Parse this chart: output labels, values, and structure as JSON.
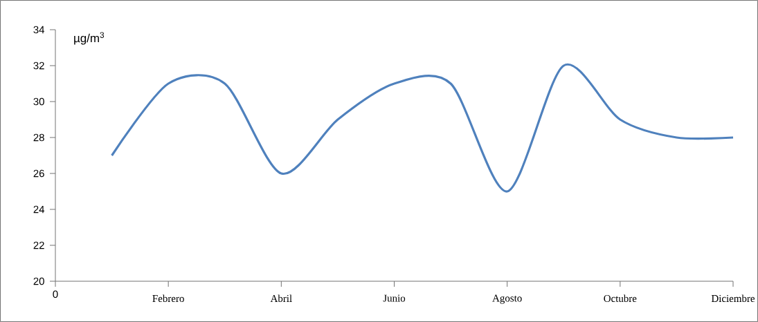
{
  "chart_data": {
    "type": "line",
    "ylabel": "µg/m$^{3}$",
    "categories": [
      null,
      "Febrero",
      null,
      "Abril",
      null,
      "Junio",
      null,
      "Agosto",
      null,
      "Octubre",
      null,
      "Diciembre"
    ],
    "series": [
      {
        "color": "#4f81bd",
        "values": [
          27,
          31,
          31,
          26,
          29,
          31,
          31,
          25,
          32,
          29,
          28,
          28
        ]
      }
    ],
    "ylim": [
      20,
      34
    ],
    "yticks": [
      20,
      22,
      24,
      26,
      28,
      30,
      32,
      34
    ],
    "annotations": [
      "0"
    ],
    "grid": false,
    "marker": "none",
    "line_style": "solid"
  }
}
